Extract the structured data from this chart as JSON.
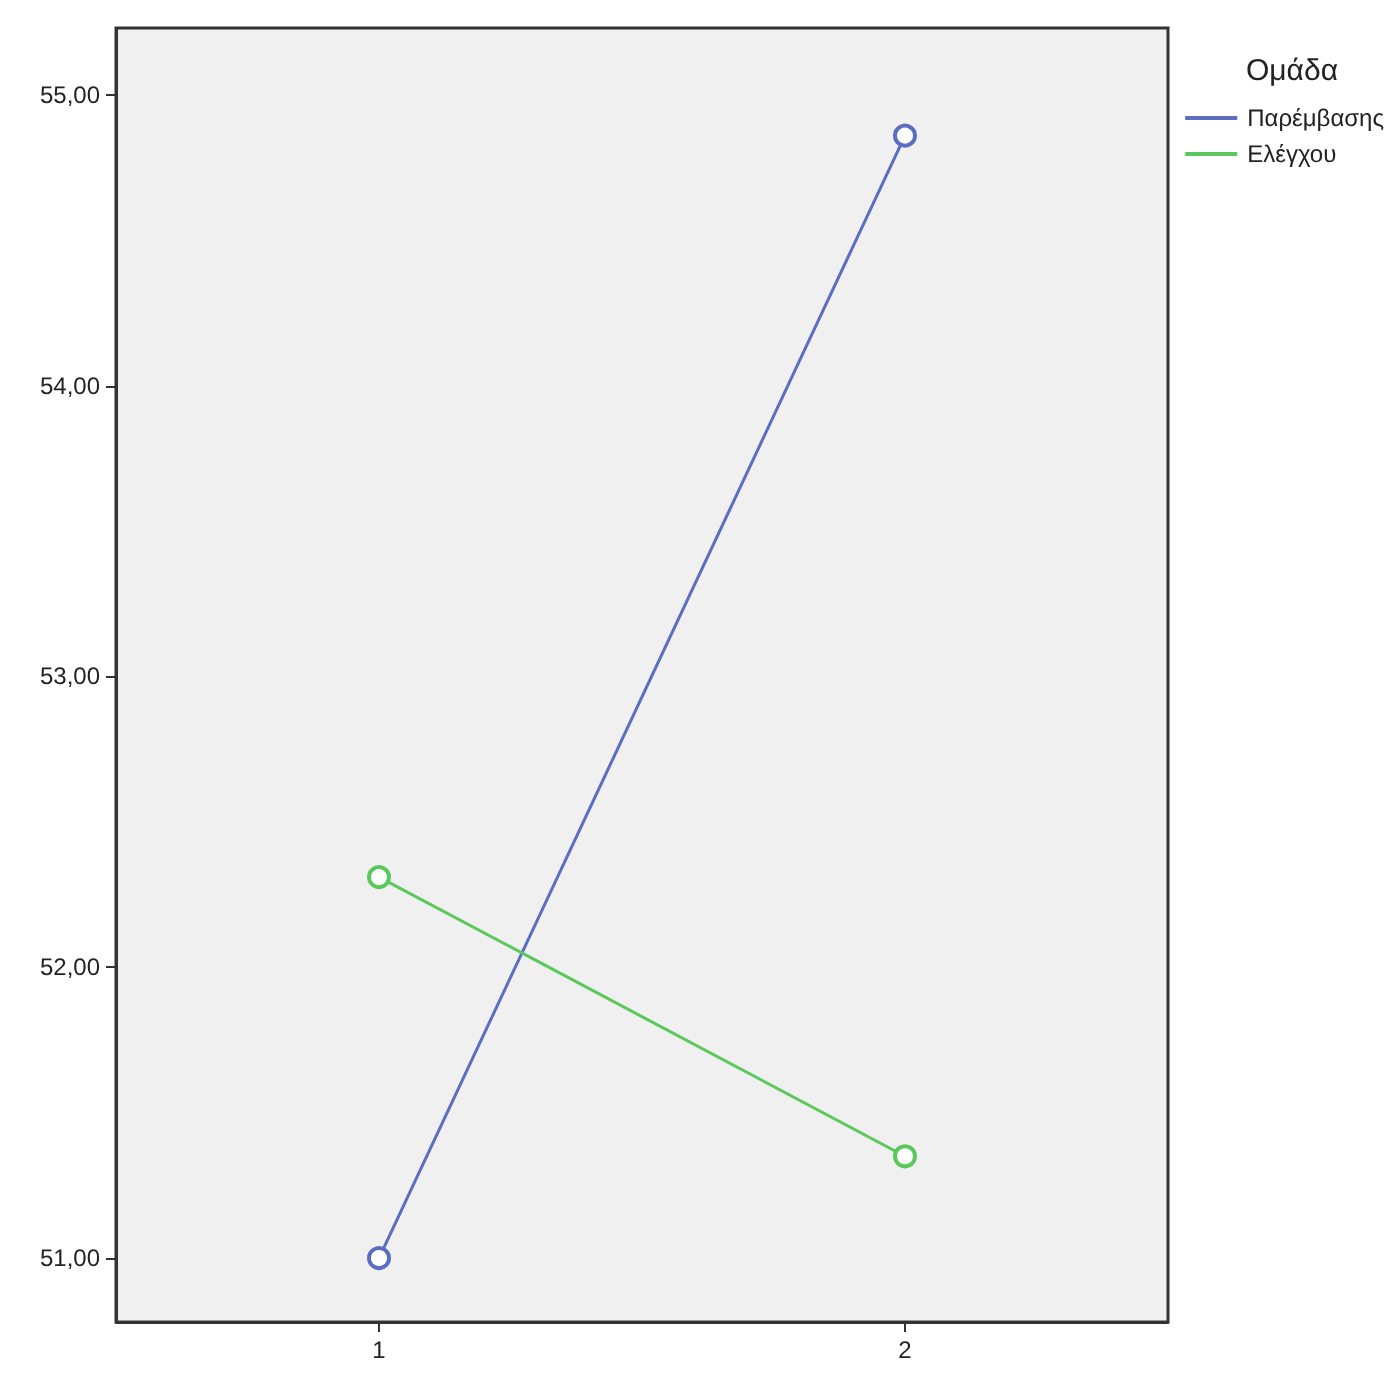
{
  "chart_data": {
    "type": "line",
    "legend_title": "Ομάδα",
    "categories": [
      "1",
      "2"
    ],
    "series": [
      {
        "name": "Παρέμβασης",
        "color": "#5b6dc0",
        "values": [
          51.0,
          54.86
        ]
      },
      {
        "name": "Ελέγχου",
        "color": "#5ac85a",
        "values": [
          52.31,
          51.35
        ]
      }
    ],
    "ylim": [
      50.78,
      55.23
    ],
    "yticks": [
      {
        "value": 51,
        "label": "51,00"
      },
      {
        "value": 52,
        "label": "52,00"
      },
      {
        "value": 53,
        "label": "53,00"
      },
      {
        "value": 54,
        "label": "54,00"
      },
      {
        "value": 55,
        "label": "55,00"
      }
    ],
    "grid": false,
    "legend": "top right",
    "marker": "circle",
    "line_style": "solid"
  }
}
